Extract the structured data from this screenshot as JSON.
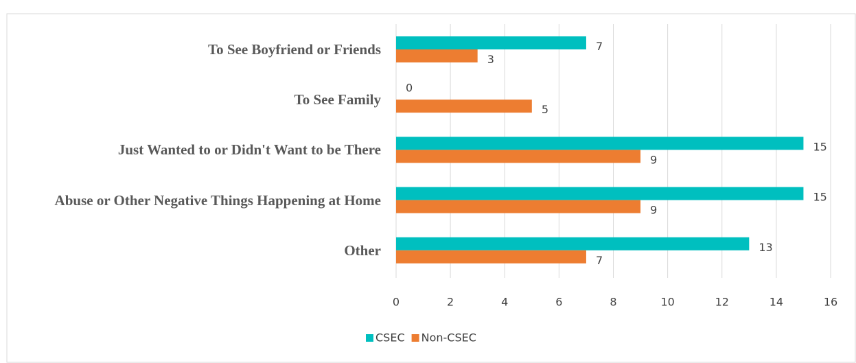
{
  "chart_data": {
    "type": "hbar",
    "categories": [
      "To See Boyfriend or Friends",
      "To See Family",
      "Just Wanted to or Didn't Want to be There",
      "Abuse or Other Negative Things Happening at Home",
      "Other"
    ],
    "series": [
      {
        "name": "CSEC",
        "color": "#00BFBF",
        "values": [
          7,
          0,
          15,
          15,
          13
        ]
      },
      {
        "name": "Non-CSEC",
        "color": "#ED7D31",
        "values": [
          3,
          5,
          9,
          9,
          7
        ]
      }
    ],
    "xlim": [
      0,
      16
    ],
    "xticks": [
      0,
      2,
      4,
      6,
      8,
      10,
      12,
      14,
      16
    ],
    "grid": true,
    "legend": "bottom"
  }
}
